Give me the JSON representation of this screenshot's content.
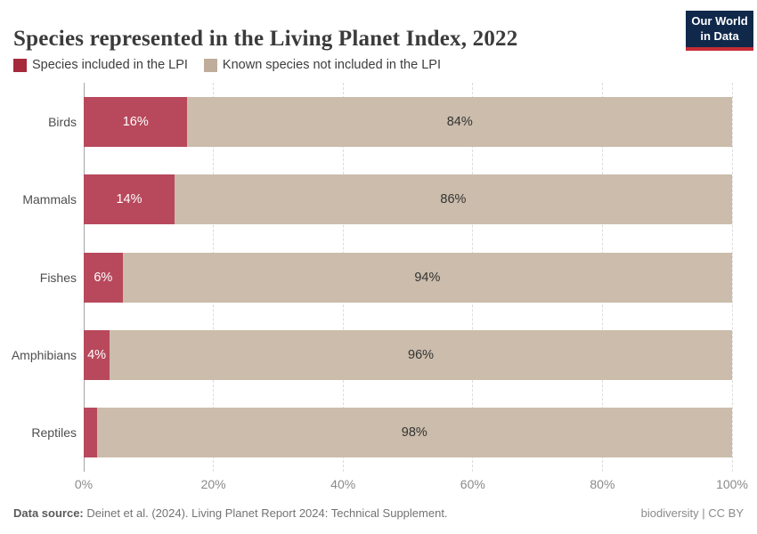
{
  "header": {
    "title": "Species represented in the Living Planet Index, 2022",
    "logo_line1": "Our World",
    "logo_line2": "in Data"
  },
  "legend": [
    {
      "label": "Species included in the LPI",
      "color": "#a52a3b"
    },
    {
      "label": "Known species not included in the LPI",
      "color": "#bfac9a"
    }
  ],
  "chart_data": {
    "type": "bar",
    "orientation": "horizontal",
    "stacked": true,
    "title": "Species represented in the Living Planet Index, 2022",
    "categories": [
      "Birds",
      "Mammals",
      "Fishes",
      "Amphibians",
      "Reptiles"
    ],
    "series": [
      {
        "name": "Species included in the LPI",
        "color": "#b8495c",
        "label_color": "#ffffff",
        "values": [
          16,
          14,
          6,
          4,
          2
        ],
        "labels": [
          "16%",
          "14%",
          "6%",
          "4%",
          ""
        ]
      },
      {
        "name": "Known species not included in the LPI",
        "color": "#cbbcab",
        "label_color": "#333333",
        "values": [
          84,
          86,
          94,
          96,
          98
        ],
        "labels": [
          "84%",
          "86%",
          "94%",
          "96%",
          "98%"
        ]
      }
    ],
    "xlim": [
      0,
      100
    ],
    "x_ticks": [
      "0%",
      "20%",
      "40%",
      "60%",
      "80%",
      "100%"
    ],
    "grid": "vertical-dashed",
    "legend_position": "top"
  },
  "footer": {
    "datasource_label": "Data source:",
    "datasource_text": " Deinet et al. (2024). Living Planet Report 2024: Technical Supplement.",
    "credit": "biodiversity | CC BY"
  }
}
